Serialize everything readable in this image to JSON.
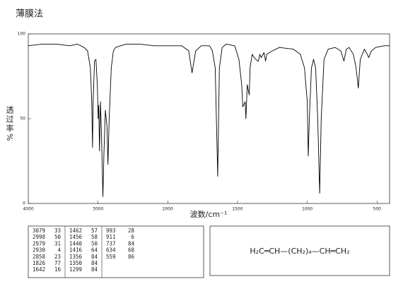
{
  "title": "薄膜法",
  "chart_data": {
    "type": "line",
    "x_label": "波数/cm⁻¹",
    "y_label": "透过率%",
    "color": "#000000",
    "xlim": [
      4000,
      410
    ],
    "x_break": 2000,
    "xticks": [
      4000,
      3000,
      2000,
      1500,
      1000,
      500
    ],
    "ylim": [
      0,
      100
    ],
    "yticks": [
      0,
      50,
      100
    ],
    "x": [
      4000,
      3800,
      3600,
      3400,
      3300,
      3200,
      3150,
      3110,
      3090,
      3079,
      3070,
      3050,
      3030,
      3010,
      2998,
      2990,
      2979,
      2965,
      2950,
      2930,
      2915,
      2895,
      2870,
      2858,
      2840,
      2810,
      2780,
      2750,
      2600,
      2400,
      2200,
      2100,
      2000,
      1900,
      1850,
      1826,
      1800,
      1760,
      1700,
      1680,
      1660,
      1642,
      1630,
      1610,
      1580,
      1520,
      1490,
      1470,
      1462,
      1456,
      1445,
      1440,
      1430,
      1416,
      1410,
      1395,
      1380,
      1356,
      1350,
      1340,
      1330,
      1310,
      1299,
      1290,
      1250,
      1200,
      1100,
      1050,
      1020,
      1000,
      993,
      985,
      970,
      955,
      940,
      925,
      911,
      900,
      880,
      850,
      800,
      760,
      737,
      720,
      700,
      670,
      650,
      634,
      620,
      590,
      570,
      559,
      540,
      510,
      450,
      410
    ],
    "values": [
      93,
      94,
      94,
      93,
      94,
      92,
      90,
      80,
      60,
      33,
      60,
      84,
      85,
      70,
      50,
      58,
      31,
      60,
      40,
      4,
      30,
      55,
      45,
      23,
      50,
      80,
      90,
      92,
      94,
      94,
      93,
      93,
      93,
      93,
      90,
      77,
      90,
      93,
      93,
      90,
      80,
      16,
      80,
      92,
      94,
      93,
      85,
      70,
      57,
      58,
      60,
      50,
      70,
      64,
      80,
      88,
      86,
      84,
      84,
      88,
      86,
      89,
      84,
      88,
      90,
      92,
      91,
      88,
      80,
      60,
      28,
      50,
      80,
      85,
      80,
      50,
      6,
      50,
      85,
      91,
      92,
      90,
      84,
      91,
      92,
      88,
      80,
      68,
      85,
      91,
      88,
      86,
      90,
      92,
      93,
      93
    ]
  },
  "peak_table": {
    "columns": [
      [
        [
          "3079",
          "33"
        ],
        [
          "2998",
          "50"
        ],
        [
          "2979",
          "31"
        ],
        [
          "2930",
          "4"
        ],
        [
          "2858",
          "23"
        ],
        [
          "1826",
          "77"
        ],
        [
          "1642",
          "16"
        ]
      ],
      [
        [
          "1462",
          "57"
        ],
        [
          "1456",
          "58"
        ],
        [
          "1440",
          "50"
        ],
        [
          "1416",
          "64"
        ],
        [
          "1356",
          "84"
        ],
        [
          "1350",
          "84"
        ],
        [
          "1299",
          "84"
        ]
      ],
      [
        [
          "993",
          "28"
        ],
        [
          "911",
          "6"
        ],
        [
          "737",
          "84"
        ],
        [
          "634",
          "68"
        ],
        [
          "559",
          "86"
        ]
      ]
    ]
  },
  "structure": "H₂C═CH—(CH₂)₄—CH═CH₂"
}
